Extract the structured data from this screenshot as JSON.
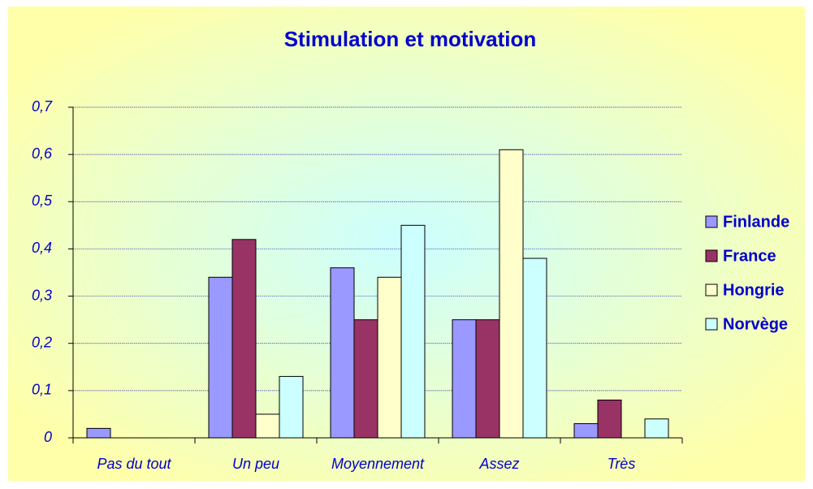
{
  "chart_data": {
    "type": "bar",
    "title": "Stimulation et motivation",
    "categories": [
      "Pas du tout",
      "Un peu",
      "Moyennement",
      "Assez",
      "Très"
    ],
    "series": [
      {
        "name": "Finlande",
        "color": "#9999ff",
        "values": [
          0.02,
          0.34,
          0.36,
          0.25,
          0.03
        ]
      },
      {
        "name": "France",
        "color": "#993366",
        "values": [
          0,
          0.42,
          0.25,
          0.25,
          0.08
        ]
      },
      {
        "name": "Hongrie",
        "color": "#ffffcc",
        "values": [
          0,
          0.05,
          0.34,
          0.61,
          0
        ]
      },
      {
        "name": "Norvège",
        "color": "#ccffff",
        "values": [
          0,
          0.13,
          0.45,
          0.38,
          0.04
        ]
      }
    ],
    "ylim": [
      0,
      0.7
    ],
    "yticks": [
      0,
      {
        "value": 0.1,
        "label": "0,1"
      },
      {
        "value": 0.2,
        "label": "0,2"
      },
      {
        "value": 0.3,
        "label": "0,3"
      },
      {
        "value": 0.4,
        "label": "0,4"
      },
      {
        "value": 0.5,
        "label": "0,5"
      },
      {
        "value": 0.6,
        "label": "0,6"
      },
      {
        "value": 0.7,
        "label": "0,7"
      }
    ],
    "grid": true,
    "legend": "right"
  }
}
